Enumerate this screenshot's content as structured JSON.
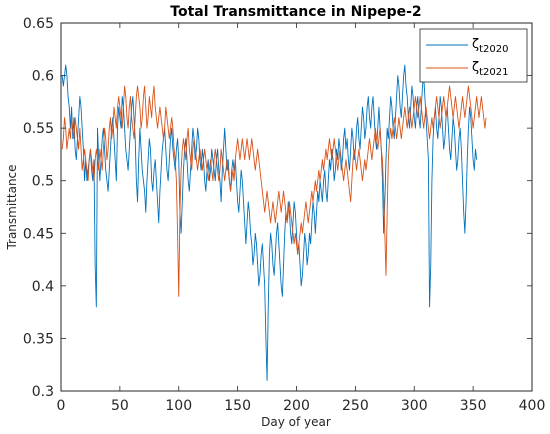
{
  "chart_data": {
    "type": "line",
    "title": "Total Transmittance in Nipepe-2",
    "xlabel": "Day of year",
    "ylabel": "Transmittance",
    "xlim": [
      0,
      400
    ],
    "ylim": [
      0.3,
      0.65
    ],
    "x_ticks": [
      0,
      50,
      100,
      150,
      200,
      250,
      300,
      350,
      400
    ],
    "y_ticks": [
      0.3,
      0.35,
      0.4,
      0.45,
      0.5,
      0.55,
      0.6,
      0.65
    ],
    "x_tick_labels": [
      "0",
      "50",
      "100",
      "150",
      "200",
      "250",
      "300",
      "350",
      "400"
    ],
    "y_tick_labels": [
      "0.3",
      "0.35",
      "0.4",
      "0.45",
      "0.5",
      "0.55",
      "0.6",
      "0.65"
    ],
    "grid": false,
    "legend_position": "top-right",
    "series": [
      {
        "name": "ζt2020",
        "legend_symbol": "ζ",
        "legend_subscript": "t2020",
        "color": "#0072BD",
        "x_start": 1,
        "x_step": 1,
        "values": [
          0.6,
          0.59,
          0.6,
          0.61,
          0.6,
          0.58,
          0.57,
          0.55,
          0.57,
          0.54,
          0.56,
          0.53,
          0.52,
          0.54,
          0.56,
          0.58,
          0.57,
          0.55,
          0.53,
          0.5,
          0.52,
          0.5,
          0.51,
          0.52,
          0.53,
          0.51,
          0.5,
          0.52,
          0.42,
          0.38,
          0.55,
          0.52,
          0.5,
          0.52,
          0.54,
          0.55,
          0.53,
          0.51,
          0.5,
          0.49,
          0.51,
          0.53,
          0.55,
          0.56,
          0.54,
          0.52,
          0.5,
          0.55,
          0.57,
          0.56,
          0.55,
          0.58,
          0.57,
          0.55,
          0.53,
          0.52,
          0.51,
          0.53,
          0.55,
          0.57,
          0.58,
          0.56,
          0.54,
          0.5,
          0.48,
          0.52,
          0.55,
          0.53,
          0.51,
          0.5,
          0.49,
          0.47,
          0.5,
          0.52,
          0.54,
          0.53,
          0.5,
          0.49,
          0.51,
          0.52,
          0.5,
          0.48,
          0.46,
          0.49,
          0.51,
          0.53,
          0.54,
          0.55,
          0.53,
          0.51,
          0.5,
          0.52,
          0.54,
          0.55,
          0.53,
          0.52,
          0.51,
          0.53,
          0.54,
          0.52,
          0.47,
          0.45,
          0.48,
          0.51,
          0.53,
          0.54,
          0.52,
          0.5,
          0.49,
          0.51,
          0.53,
          0.55,
          0.54,
          0.52,
          0.53,
          0.55,
          0.54,
          0.52,
          0.51,
          0.53,
          0.52,
          0.5,
          0.49,
          0.51,
          0.52,
          0.5,
          0.51,
          0.53,
          0.52,
          0.51,
          0.5,
          0.52,
          0.53,
          0.51,
          0.5,
          0.48,
          0.51,
          0.53,
          0.55,
          0.53,
          0.51,
          0.52,
          0.5,
          0.49,
          0.51,
          0.52,
          0.51,
          0.52,
          0.5,
          0.48,
          0.47,
          0.49,
          0.51,
          0.5,
          0.48,
          0.46,
          0.44,
          0.46,
          0.48,
          0.47,
          0.45,
          0.44,
          0.42,
          0.43,
          0.45,
          0.44,
          0.42,
          0.4,
          0.41,
          0.43,
          0.44,
          0.42,
          0.4,
          0.35,
          0.31,
          0.38,
          0.43,
          0.45,
          0.44,
          0.42,
          0.41,
          0.43,
          0.45,
          0.46,
          0.44,
          0.42,
          0.4,
          0.39,
          0.42,
          0.45,
          0.47,
          0.46,
          0.48,
          0.47,
          0.45,
          0.44,
          0.46,
          0.48,
          0.47,
          0.45,
          0.43,
          0.44,
          0.42,
          0.4,
          0.41,
          0.43,
          0.45,
          0.44,
          0.42,
          0.43,
          0.45,
          0.44,
          0.46,
          0.48,
          0.47,
          0.45,
          0.47,
          0.49,
          0.48,
          0.5,
          0.49,
          0.48,
          0.5,
          0.51,
          0.49,
          0.48,
          0.5,
          0.52,
          0.51,
          0.53,
          0.52,
          0.5,
          0.51,
          0.53,
          0.52,
          0.54,
          0.53,
          0.51,
          0.52,
          0.54,
          0.55,
          0.53,
          0.54,
          0.52,
          0.51,
          0.53,
          0.55,
          0.54,
          0.52,
          0.53,
          0.55,
          0.56,
          0.54,
          0.53,
          0.55,
          0.57,
          0.56,
          0.54,
          0.55,
          0.57,
          0.58,
          0.56,
          0.55,
          0.57,
          0.58,
          0.56,
          0.54,
          0.53,
          0.55,
          0.57,
          0.55,
          0.53,
          0.5,
          0.45,
          0.48,
          0.52,
          0.55,
          0.54,
          0.56,
          0.58,
          0.57,
          0.55,
          0.54,
          0.56,
          0.58,
          0.6,
          0.59,
          0.57,
          0.56,
          0.58,
          0.6,
          0.61,
          0.59,
          0.58,
          0.56,
          0.55,
          0.57,
          0.59,
          0.58,
          0.56,
          0.55,
          0.57,
          0.58,
          0.56,
          0.55,
          0.57,
          0.59,
          0.6,
          0.58,
          0.56,
          0.54,
          0.52,
          0.38,
          0.42,
          0.5,
          0.54,
          0.56,
          0.57,
          0.55,
          0.54,
          0.56,
          0.58,
          0.57,
          0.55,
          0.53,
          0.54,
          0.56,
          0.57,
          0.55,
          0.53,
          0.52,
          0.54,
          0.56,
          0.55,
          0.53,
          0.51,
          0.52,
          0.54,
          0.55,
          0.53,
          0.5,
          0.47,
          0.45,
          0.48,
          0.52,
          0.55,
          0.57,
          0.56,
          0.54,
          0.52,
          0.51,
          0.53,
          0.52
        ]
      },
      {
        "name": "ζt2021",
        "legend_symbol": "ζ",
        "legend_subscript": "t2021",
        "color": "#D95319",
        "x_start": 1,
        "x_step": 1,
        "values": [
          0.53,
          0.54,
          0.56,
          0.55,
          0.53,
          0.54,
          0.55,
          0.54,
          0.56,
          0.55,
          0.54,
          0.56,
          0.55,
          0.54,
          0.53,
          0.55,
          0.53,
          0.51,
          0.52,
          0.53,
          0.52,
          0.51,
          0.5,
          0.52,
          0.53,
          0.52,
          0.51,
          0.5,
          0.52,
          0.53,
          0.52,
          0.51,
          0.53,
          0.52,
          0.51,
          0.53,
          0.55,
          0.54,
          0.52,
          0.53,
          0.55,
          0.56,
          0.54,
          0.55,
          0.57,
          0.56,
          0.55,
          0.57,
          0.58,
          0.57,
          0.56,
          0.55,
          0.57,
          0.59,
          0.58,
          0.56,
          0.55,
          0.57,
          0.58,
          0.56,
          0.55,
          0.54,
          0.56,
          0.58,
          0.59,
          0.58,
          0.57,
          0.55,
          0.56,
          0.58,
          0.59,
          0.57,
          0.55,
          0.56,
          0.58,
          0.57,
          0.56,
          0.58,
          0.59,
          0.57,
          0.56,
          0.55,
          0.56,
          0.57,
          0.56,
          0.55,
          0.54,
          0.55,
          0.57,
          0.56,
          0.55,
          0.54,
          0.55,
          0.56,
          0.55,
          0.53,
          0.52,
          0.5,
          0.45,
          0.39,
          0.47,
          0.51,
          0.53,
          0.54,
          0.53,
          0.52,
          0.54,
          0.55,
          0.53,
          0.52,
          0.51,
          0.53,
          0.54,
          0.53,
          0.52,
          0.51,
          0.52,
          0.53,
          0.52,
          0.51,
          0.52,
          0.53,
          0.52,
          0.51,
          0.5,
          0.51,
          0.52,
          0.51,
          0.5,
          0.52,
          0.53,
          0.52,
          0.51,
          0.5,
          0.51,
          0.53,
          0.52,
          0.51,
          0.5,
          0.51,
          0.52,
          0.51,
          0.5,
          0.49,
          0.5,
          0.51,
          0.5,
          0.52,
          0.53,
          0.54,
          0.53,
          0.52,
          0.53,
          0.54,
          0.53,
          0.52,
          0.53,
          0.54,
          0.53,
          0.52,
          0.53,
          0.54,
          0.53,
          0.52,
          0.51,
          0.52,
          0.53,
          0.52,
          0.51,
          0.5,
          0.49,
          0.48,
          0.47,
          0.48,
          0.49,
          0.48,
          0.47,
          0.46,
          0.47,
          0.48,
          0.47,
          0.46,
          0.47,
          0.48,
          0.49,
          0.48,
          0.47,
          0.48,
          0.49,
          0.48,
          0.47,
          0.46,
          0.47,
          0.48,
          0.47,
          0.46,
          0.45,
          0.44,
          0.45,
          0.44,
          0.43,
          0.44,
          0.45,
          0.46,
          0.45,
          0.46,
          0.47,
          0.48,
          0.47,
          0.46,
          0.47,
          0.48,
          0.49,
          0.48,
          0.49,
          0.5,
          0.49,
          0.5,
          0.51,
          0.5,
          0.51,
          0.52,
          0.51,
          0.52,
          0.53,
          0.52,
          0.53,
          0.54,
          0.53,
          0.52,
          0.53,
          0.54,
          0.53,
          0.52,
          0.51,
          0.52,
          0.53,
          0.52,
          0.51,
          0.5,
          0.51,
          0.52,
          0.51,
          0.5,
          0.49,
          0.48,
          0.5,
          0.52,
          0.53,
          0.52,
          0.51,
          0.52,
          0.53,
          0.52,
          0.51,
          0.5,
          0.51,
          0.52,
          0.51,
          0.52,
          0.53,
          0.54,
          0.53,
          0.52,
          0.53,
          0.54,
          0.55,
          0.54,
          0.53,
          0.54,
          0.55,
          0.53,
          0.52,
          0.49,
          0.45,
          0.41,
          0.47,
          0.52,
          0.54,
          0.55,
          0.54,
          0.55,
          0.56,
          0.55,
          0.54,
          0.55,
          0.56,
          0.55,
          0.54,
          0.55,
          0.56,
          0.57,
          0.56,
          0.55,
          0.56,
          0.57,
          0.56,
          0.55,
          0.56,
          0.57,
          0.58,
          0.57,
          0.56,
          0.57,
          0.58,
          0.57,
          0.56,
          0.55,
          0.56,
          0.57,
          0.56,
          0.55,
          0.54,
          0.55,
          0.56,
          0.55,
          0.56,
          0.57,
          0.58,
          0.57,
          0.56,
          0.55,
          0.56,
          0.57,
          0.58,
          0.57,
          0.56,
          0.57,
          0.58,
          0.59,
          0.58,
          0.57,
          0.56,
          0.57,
          0.58,
          0.57,
          0.56,
          0.55,
          0.56,
          0.57,
          0.58,
          0.57,
          0.56,
          0.57,
          0.58,
          0.59,
          0.58,
          0.57,
          0.56,
          0.55,
          0.56,
          0.57,
          0.58,
          0.57,
          0.56,
          0.57,
          0.58,
          0.57,
          0.56,
          0.55,
          0.56
        ]
      }
    ]
  }
}
